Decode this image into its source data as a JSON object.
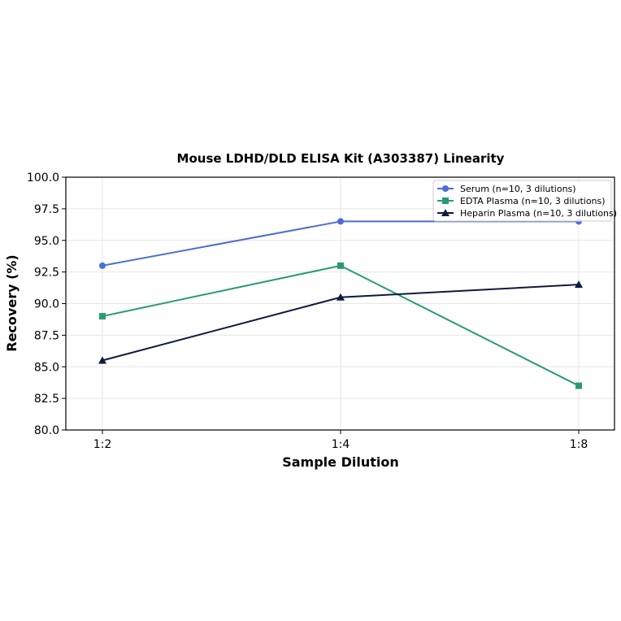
{
  "chart_data": {
    "type": "line",
    "title": "Mouse LDHD/DLD ELISA Kit (A303387) Linearity",
    "xlabel": "Sample Dilution",
    "ylabel": "Recovery (%)",
    "categories": [
      "1:2",
      "1:4",
      "1:8"
    ],
    "ylim": [
      80.0,
      100.0
    ],
    "yticks": [
      "80.0",
      "82.5",
      "85.0",
      "87.5",
      "90.0",
      "92.5",
      "95.0",
      "97.5",
      "100.0"
    ],
    "grid": true,
    "legend_position": "top-right",
    "series": [
      {
        "name": "Serum (n=10, 3 dilutions)",
        "values": [
          93.0,
          96.5,
          96.5
        ],
        "color": "#4a6fd4",
        "marker": "circle"
      },
      {
        "name": "EDTA Plasma (n=10, 3 dilutions)",
        "values": [
          89.0,
          93.0,
          83.5
        ],
        "color": "#2a9a74",
        "marker": "square"
      },
      {
        "name": "Heparin Plasma (n=10, 3 dilutions)",
        "values": [
          85.5,
          90.5,
          91.5
        ],
        "color": "#0f1a3c",
        "marker": "triangle"
      }
    ]
  }
}
